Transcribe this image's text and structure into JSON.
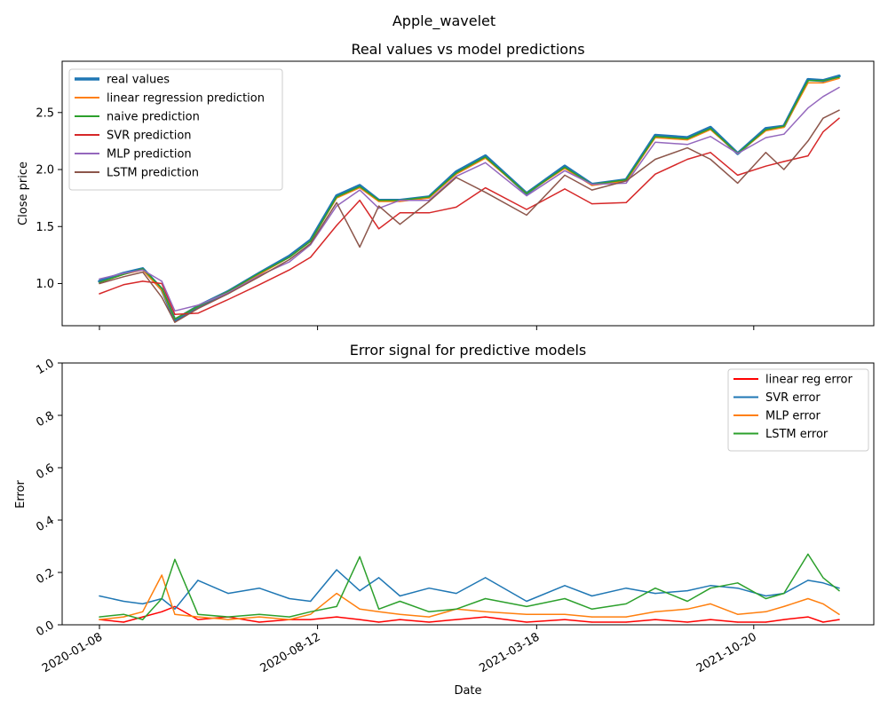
{
  "figure_title": "Apple_wavelet",
  "chart_data": [
    {
      "type": "line",
      "title": "Real values vs model predictions",
      "xlabel": "",
      "ylabel": "Close price",
      "x_range": [
        "2020-01-08",
        "2022-01-13"
      ],
      "ylim": [
        0.63,
        2.95
      ],
      "yticks": [
        1.0,
        1.5,
        2.0,
        2.5
      ],
      "ytick_labels": [
        "1.0",
        "1.5",
        "2.0",
        "2.5"
      ],
      "xticks": [
        "2020-01-08",
        "2020-08-12",
        "2021-03-18",
        "2021-10-20"
      ],
      "grid": false,
      "legend_position": "upper left",
      "x": [
        "2020-01-08",
        "2020-02-01",
        "2020-02-20",
        "2020-03-10",
        "2020-03-23",
        "2020-04-15",
        "2020-05-15",
        "2020-06-15",
        "2020-07-15",
        "2020-08-05",
        "2020-08-31",
        "2020-09-23",
        "2020-10-12",
        "2020-11-02",
        "2020-12-01",
        "2020-12-28",
        "2021-01-26",
        "2021-03-08",
        "2021-04-15",
        "2021-05-12",
        "2021-06-15",
        "2021-07-14",
        "2021-08-15",
        "2021-09-07",
        "2021-10-04",
        "2021-11-01",
        "2021-11-19",
        "2021-12-13",
        "2021-12-28",
        "2022-01-13"
      ],
      "series": [
        {
          "name": "real values",
          "color": "#1f77b4",
          "width": 3.5,
          "values": [
            1.02,
            1.09,
            1.13,
            0.95,
            0.68,
            0.8,
            0.93,
            1.09,
            1.24,
            1.38,
            1.77,
            1.86,
            1.73,
            1.73,
            1.76,
            1.98,
            2.12,
            1.79,
            2.03,
            1.87,
            1.91,
            2.3,
            2.28,
            2.37,
            2.14,
            2.36,
            2.38,
            2.79,
            2.78,
            2.82
          ]
        },
        {
          "name": "linear regression prediction",
          "color": "#ff7f0e",
          "width": 1.5,
          "values": [
            1.01,
            1.08,
            1.12,
            0.94,
            0.69,
            0.8,
            0.93,
            1.08,
            1.23,
            1.37,
            1.75,
            1.84,
            1.72,
            1.72,
            1.75,
            1.96,
            2.1,
            1.79,
            2.01,
            1.86,
            1.9,
            2.28,
            2.26,
            2.35,
            2.14,
            2.34,
            2.37,
            2.76,
            2.76,
            2.8
          ]
        },
        {
          "name": "naive prediction",
          "color": "#2ca02c",
          "width": 1.5,
          "values": [
            1.01,
            1.08,
            1.13,
            0.96,
            0.69,
            0.8,
            0.93,
            1.09,
            1.23,
            1.37,
            1.76,
            1.85,
            1.73,
            1.73,
            1.76,
            1.97,
            2.11,
            1.79,
            2.02,
            1.87,
            1.91,
            2.29,
            2.27,
            2.36,
            2.14,
            2.35,
            2.38,
            2.78,
            2.78,
            2.81
          ]
        },
        {
          "name": "SVR prediction",
          "color": "#d62728",
          "width": 1.5,
          "values": [
            0.91,
            0.99,
            1.02,
            1.0,
            0.73,
            0.74,
            0.86,
            0.99,
            1.12,
            1.23,
            1.51,
            1.73,
            1.48,
            1.62,
            1.62,
            1.67,
            1.84,
            1.65,
            1.83,
            1.7,
            1.71,
            1.96,
            2.09,
            2.15,
            1.95,
            2.03,
            2.07,
            2.12,
            2.33,
            2.45
          ]
        },
        {
          "name": "MLP prediction",
          "color": "#9467bd",
          "width": 1.5,
          "values": [
            1.04,
            1.09,
            1.12,
            1.02,
            0.76,
            0.81,
            0.92,
            1.07,
            1.19,
            1.34,
            1.68,
            1.82,
            1.66,
            1.73,
            1.73,
            1.94,
            2.06,
            1.77,
            1.99,
            1.87,
            1.88,
            2.24,
            2.22,
            2.29,
            2.14,
            2.28,
            2.31,
            2.54,
            2.64,
            2.72
          ]
        },
        {
          "name": "LSTM prediction",
          "color": "#8c564b",
          "width": 1.5,
          "values": [
            1.0,
            1.06,
            1.1,
            0.88,
            0.66,
            0.78,
            0.91,
            1.06,
            1.21,
            1.35,
            1.71,
            1.32,
            1.68,
            1.52,
            1.72,
            1.93,
            1.8,
            1.6,
            1.95,
            1.82,
            1.9,
            2.09,
            2.19,
            2.09,
            1.88,
            2.15,
            2.0,
            2.25,
            2.45,
            2.52
          ]
        }
      ]
    },
    {
      "type": "line",
      "title": "Error signal for predictive models",
      "xlabel": "Date",
      "ylabel": "Error",
      "x_range": [
        "2020-01-08",
        "2022-01-13"
      ],
      "ylim": [
        0.0,
        1.0
      ],
      "yticks": [
        0.0,
        0.2,
        0.4,
        0.6,
        0.8,
        1.0
      ],
      "ytick_labels": [
        "0.0",
        "0.2",
        "0.4",
        "0.6",
        "0.8",
        "1.0"
      ],
      "xticks": [
        "2020-01-08",
        "2020-08-12",
        "2021-03-18",
        "2021-10-20"
      ],
      "grid": false,
      "legend_position": "upper right",
      "x": [
        "2020-01-08",
        "2020-02-01",
        "2020-02-20",
        "2020-03-10",
        "2020-03-23",
        "2020-04-15",
        "2020-05-15",
        "2020-06-15",
        "2020-07-15",
        "2020-08-05",
        "2020-08-31",
        "2020-09-23",
        "2020-10-12",
        "2020-11-02",
        "2020-12-01",
        "2020-12-28",
        "2021-01-26",
        "2021-03-08",
        "2021-04-15",
        "2021-05-12",
        "2021-06-15",
        "2021-07-14",
        "2021-08-15",
        "2021-09-07",
        "2021-10-04",
        "2021-11-01",
        "2021-11-19",
        "2021-12-13",
        "2021-12-28",
        "2022-01-13"
      ],
      "series": [
        {
          "name": "linear reg error",
          "color": "#ff0000",
          "width": 1.5,
          "values": [
            0.02,
            0.01,
            0.03,
            0.05,
            0.07,
            0.02,
            0.03,
            0.01,
            0.02,
            0.02,
            0.03,
            0.02,
            0.01,
            0.02,
            0.01,
            0.02,
            0.03,
            0.01,
            0.02,
            0.01,
            0.01,
            0.02,
            0.01,
            0.02,
            0.01,
            0.01,
            0.02,
            0.03,
            0.01,
            0.02
          ]
        },
        {
          "name": "SVR error",
          "color": "#1f77b4",
          "width": 1.5,
          "values": [
            0.11,
            0.09,
            0.08,
            0.1,
            0.06,
            0.17,
            0.12,
            0.14,
            0.1,
            0.09,
            0.21,
            0.13,
            0.18,
            0.11,
            0.14,
            0.12,
            0.18,
            0.09,
            0.15,
            0.11,
            0.14,
            0.12,
            0.13,
            0.15,
            0.14,
            0.11,
            0.12,
            0.17,
            0.16,
            0.14
          ]
        },
        {
          "name": "MLP error",
          "color": "#ff7f0e",
          "width": 1.5,
          "values": [
            0.02,
            0.03,
            0.05,
            0.19,
            0.04,
            0.03,
            0.02,
            0.03,
            0.02,
            0.04,
            0.12,
            0.06,
            0.05,
            0.04,
            0.03,
            0.06,
            0.05,
            0.04,
            0.04,
            0.03,
            0.03,
            0.05,
            0.06,
            0.08,
            0.04,
            0.05,
            0.07,
            0.1,
            0.08,
            0.04
          ]
        },
        {
          "name": "LSTM error",
          "color": "#2ca02c",
          "width": 1.5,
          "values": [
            0.03,
            0.04,
            0.02,
            0.1,
            0.25,
            0.04,
            0.03,
            0.04,
            0.03,
            0.05,
            0.07,
            0.26,
            0.06,
            0.09,
            0.05,
            0.06,
            0.1,
            0.07,
            0.1,
            0.06,
            0.08,
            0.14,
            0.09,
            0.14,
            0.16,
            0.1,
            0.12,
            0.27,
            0.18,
            0.13
          ]
        }
      ]
    }
  ]
}
